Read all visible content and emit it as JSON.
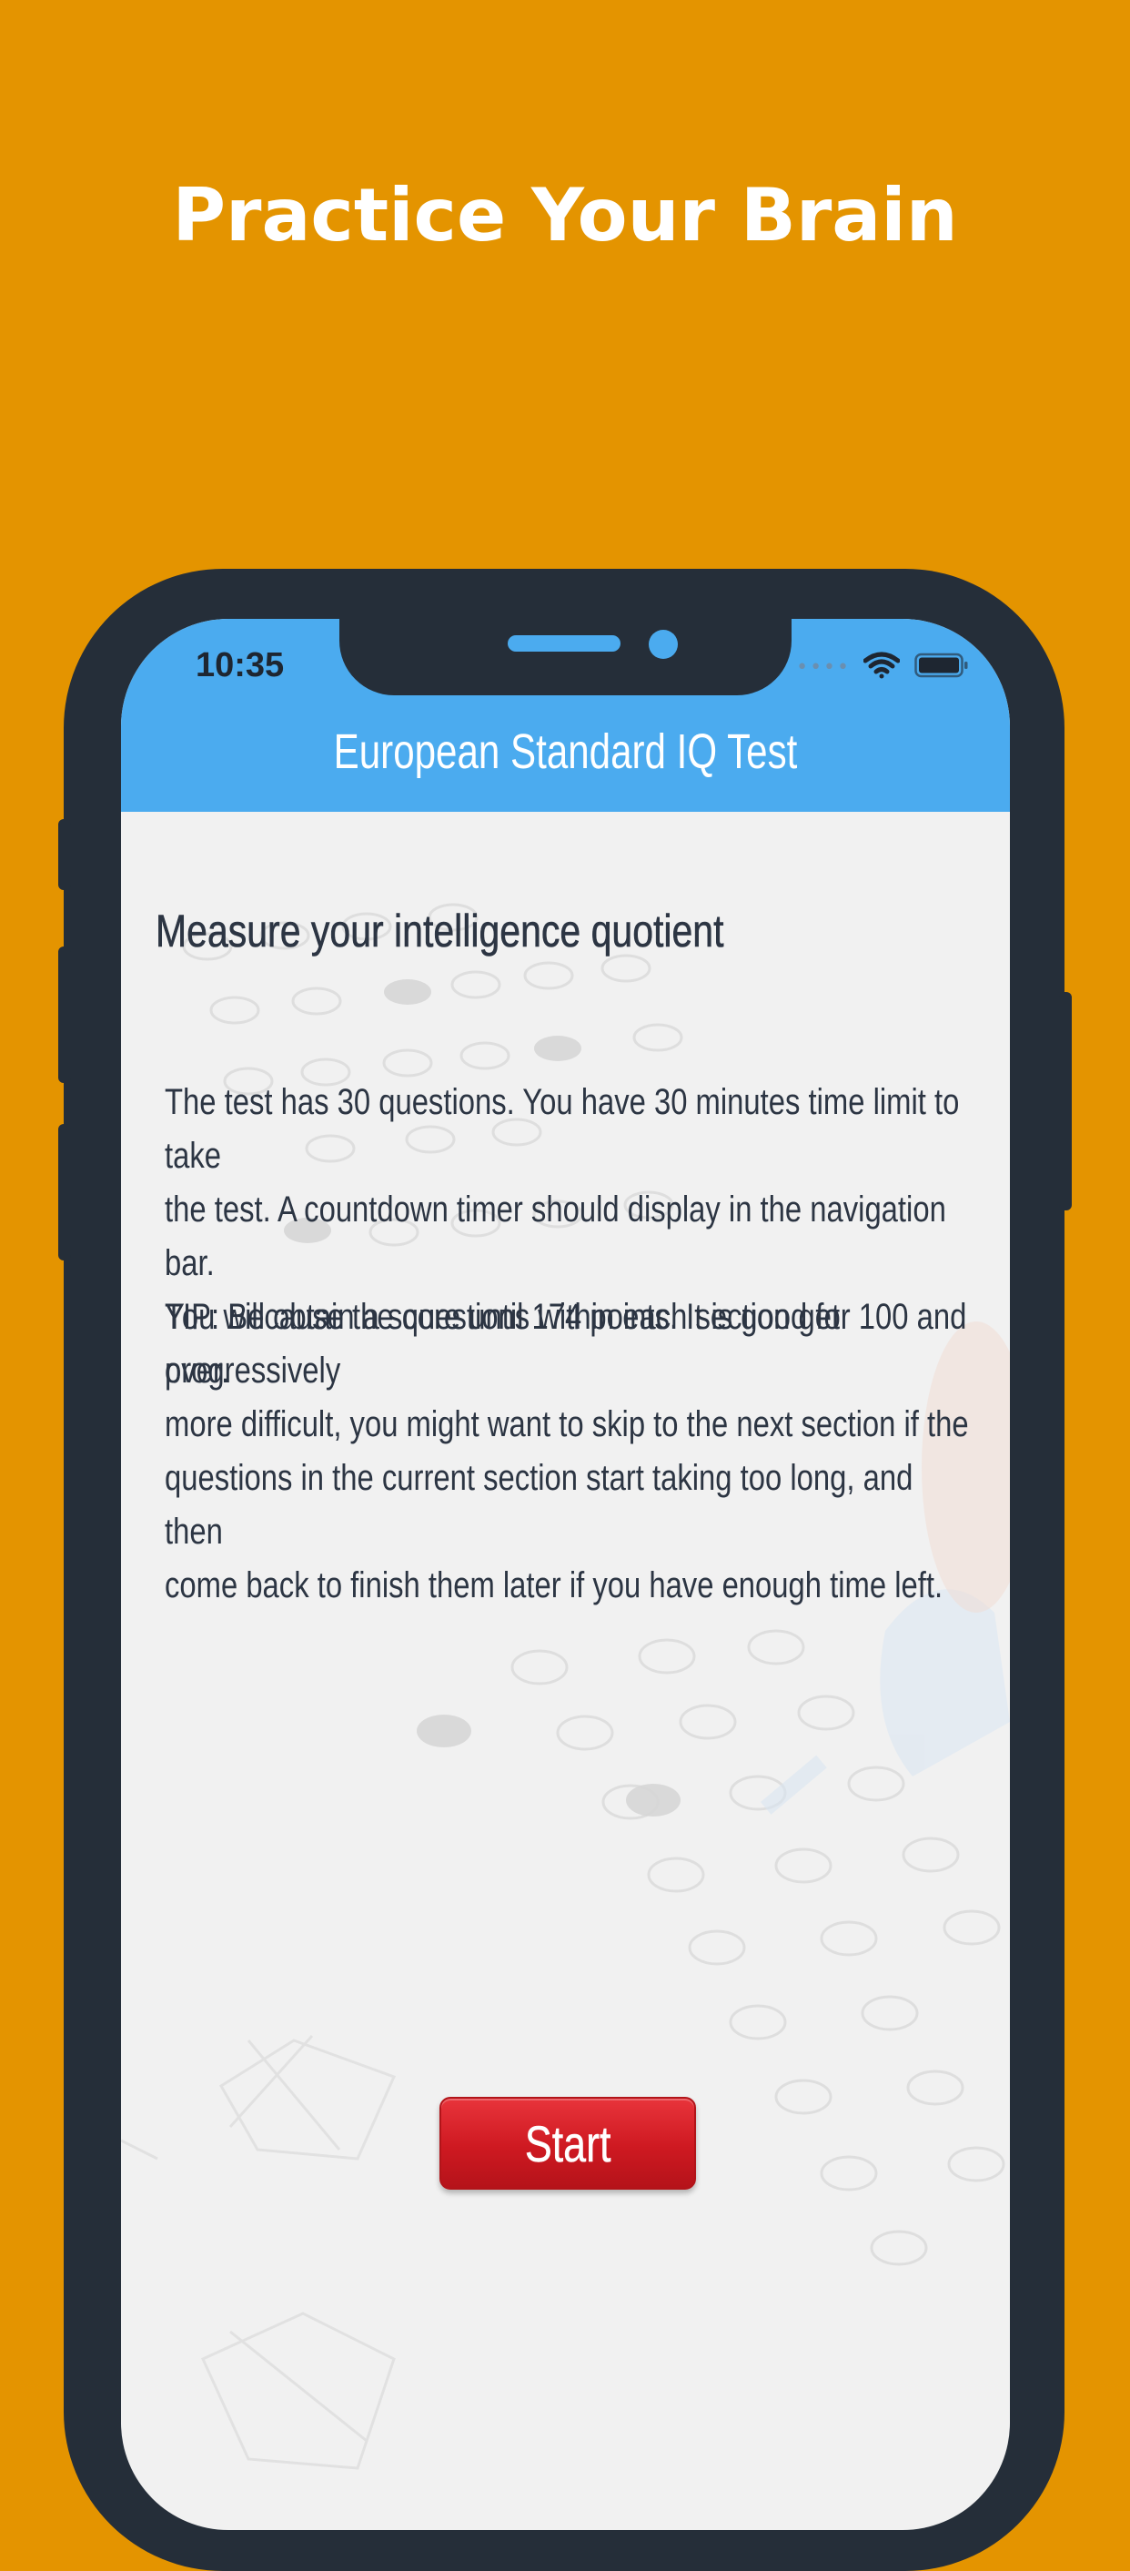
{
  "promo": {
    "headline": "Practice Your Brain"
  },
  "status_bar": {
    "time": "10:35"
  },
  "nav": {
    "title": "European Standard IQ Test"
  },
  "main": {
    "heading": "Measure your intelligence quotient",
    "paragraph1": "The test has 30 questions. You have 30 minutes time limit to take\nthe test. A countdown timer should display in the navigation bar.\nYou will obtain a score until 174 points. It is good for 100 and over.",
    "paragraph2": "TIP: Because the questions within each section get progressively\nmore difficult, you might want to skip to the next section if the\nquestions in the current section start taking too long, and then\ncome back to finish them later if you have enough time left.",
    "start_label": "Start"
  },
  "colors": {
    "background": "#E49400",
    "phone_frame": "#252E39",
    "nav_bar": "#4BABEF",
    "screen_bg": "#F1F1F1",
    "text": "#2C3543",
    "start_button": "#CE1921"
  },
  "icons": [
    "wifi-icon",
    "battery-icon",
    "signal-icon"
  ]
}
